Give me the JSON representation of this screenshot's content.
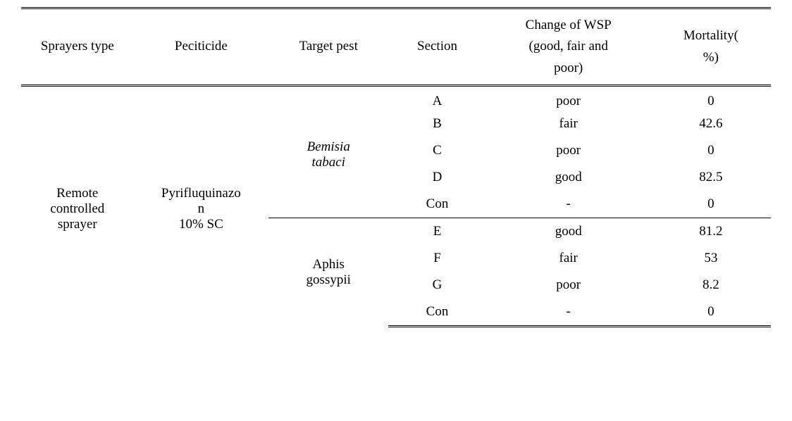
{
  "colors": {
    "background": "#ffffff",
    "text": "#000000",
    "border": "#000000"
  },
  "typography": {
    "header_fontsize": 19,
    "body_fontsize": 19,
    "font_family": "Georgia, Times New Roman, serif"
  },
  "headers": {
    "col1": "Sprayers type",
    "col2": "Peciticide",
    "col3": "Target pest",
    "col4": "Section",
    "col5_line1": "Change of WSP",
    "col5_line2": "(good,   fair and",
    "col5_line3": "poor)",
    "col6_line1": "Mortality(",
    "col6_line2": "%)"
  },
  "sprayer_line1": "Remote",
  "sprayer_line2": "controlled",
  "sprayer_line3": "sprayer",
  "pesticide_line1": "Pyrifluquinazo",
  "pesticide_line2": "n",
  "pesticide_line3": "10% SC",
  "pest1_line1": "Bemisia",
  "pest1_line2": "tabaci",
  "pest2_line1": "Aphis",
  "pest2_line2": "gossypii",
  "rows": {
    "r1": {
      "section": "A",
      "wsp": "poor",
      "mortality": "0"
    },
    "r2": {
      "section": "B",
      "wsp": "fair",
      "mortality": "42.6"
    },
    "r3": {
      "section": "C",
      "wsp": "poor",
      "mortality": "0"
    },
    "r4": {
      "section": "D",
      "wsp": "good",
      "mortality": "82.5"
    },
    "r5": {
      "section": "Con",
      "wsp": "-",
      "mortality": "0"
    },
    "r6": {
      "section": "E",
      "wsp": "good",
      "mortality": "81.2"
    },
    "r7": {
      "section": "F",
      "wsp": "fair",
      "mortality": "53"
    },
    "r8": {
      "section": "G",
      "wsp": "poor",
      "mortality": "8.2"
    },
    "r9": {
      "section": "Con",
      "wsp": "-",
      "mortality": "0"
    }
  }
}
